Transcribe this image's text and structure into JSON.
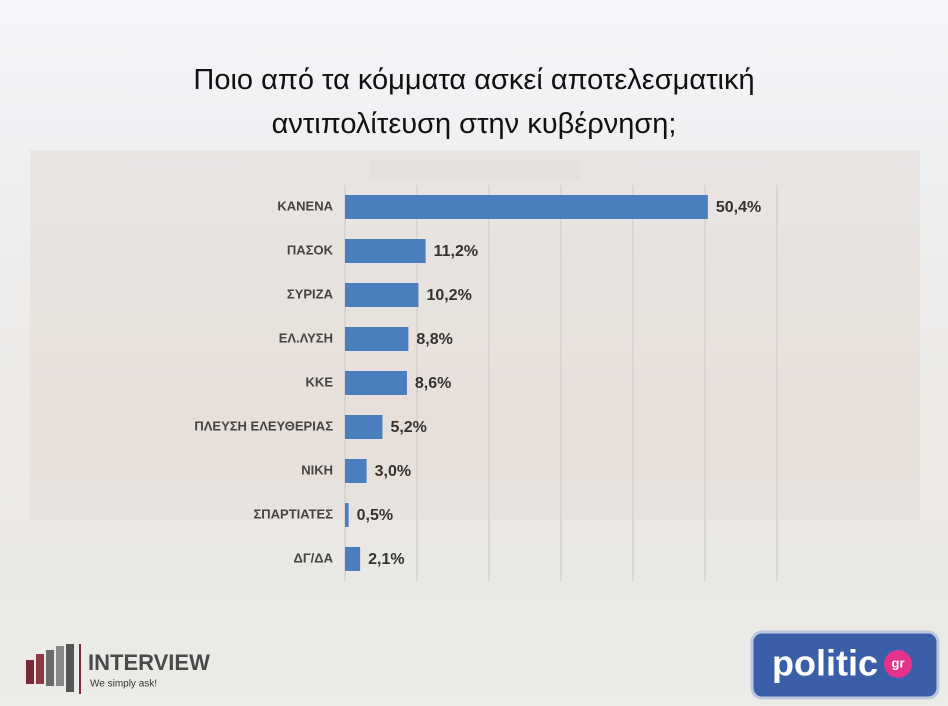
{
  "chart_data": {
    "type": "bar",
    "orientation": "horizontal",
    "title": "Ποιο από τα κόμματα ασκεί αποτελεσματική αντιπολίτευση στην κυβέρνηση;",
    "categories": [
      "ΚΑΝΕΝΑ",
      "ΠΑΣΟΚ",
      "ΣΥΡΙΖΑ",
      "ΕΛ.ΛΥΣΗ",
      "ΚΚΕ",
      "ΠΛΕΥΣΗ ΕΛΕΥΘΕΡΙΑΣ",
      "ΝΙΚΗ",
      "ΣΠΑΡΤΙΑΤΕΣ",
      "ΔΓ/ΔΑ"
    ],
    "values": [
      50.4,
      11.2,
      10.2,
      8.8,
      8.6,
      5.2,
      3.0,
      0.5,
      2.1
    ],
    "value_labels": [
      "50,4%",
      "11,2%",
      "10,2%",
      "8,8%",
      "8,6%",
      "5,2%",
      "3,0%",
      "0,5%",
      "2,1%"
    ],
    "color": "#4a7ebf",
    "xlim": [
      0,
      60
    ],
    "xticks": [
      0,
      10,
      20,
      30,
      40,
      50,
      60
    ],
    "grid": true
  },
  "branding": {
    "left_name": "INTERVIEW",
    "left_tagline": "We simply ask!",
    "right_name": "politic",
    "right_suffix": "gr"
  }
}
